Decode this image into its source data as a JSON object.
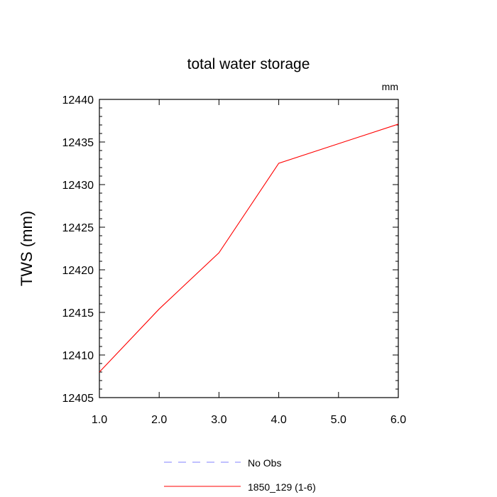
{
  "chart_data": {
    "type": "line",
    "title": "total water storage",
    "units_label": "mm",
    "xlabel": "",
    "ylabel": "TWS  (mm)",
    "xlim": [
      1.0,
      6.0
    ],
    "ylim": [
      12405,
      12440
    ],
    "x_ticks": [
      1.0,
      2.0,
      3.0,
      4.0,
      5.0,
      6.0
    ],
    "x_tick_labels": [
      "1.0",
      "2.0",
      "3.0",
      "4.0",
      "5.0",
      "6.0"
    ],
    "y_ticks": [
      12405,
      12410,
      12415,
      12420,
      12425,
      12430,
      12435,
      12440
    ],
    "y_tick_labels": [
      "12405",
      "12410",
      "12415",
      "12420",
      "12425",
      "12430",
      "12435",
      "12440"
    ],
    "y_minor_step": 1,
    "grid": false,
    "series": [
      {
        "name": "No Obs",
        "color": "#8080ff",
        "dash": "dashed",
        "x": [],
        "values": []
      },
      {
        "name": "1850_129 (1-6)",
        "color": "#ff0000",
        "dash": "solid",
        "x": [
          1.0,
          2.0,
          3.0,
          4.0,
          5.0,
          6.0
        ],
        "values": [
          12408.0,
          12415.4,
          12422.0,
          12432.5,
          12434.8,
          12437.1
        ]
      }
    ],
    "legend": [
      {
        "label": "No Obs",
        "color": "#8080ff",
        "dash": "dashed"
      },
      {
        "label": "1850_129 (1-6)",
        "color": "#ff0000",
        "dash": "solid"
      }
    ],
    "legend_position": "bottom-center"
  }
}
